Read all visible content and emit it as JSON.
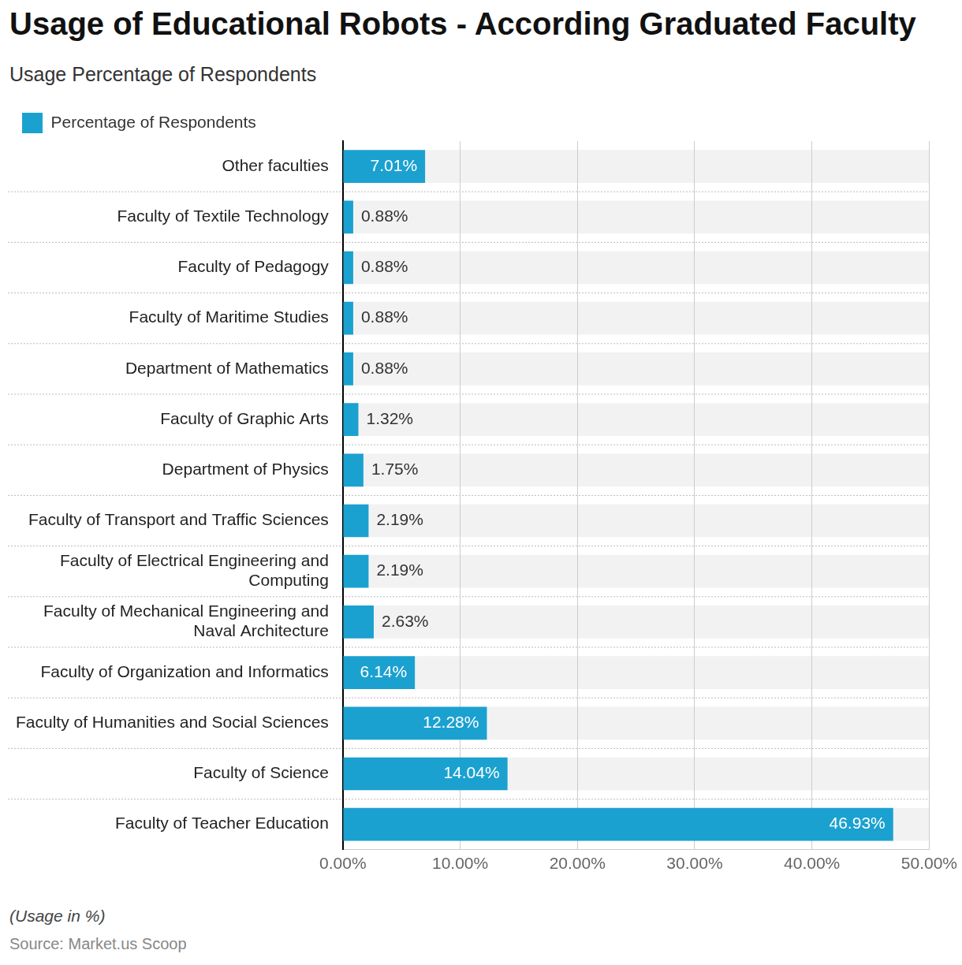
{
  "chart_data": {
    "type": "bar",
    "orientation": "horizontal",
    "title": "Usage of Educational Robots - According Graduated Faculty",
    "subtitle": "Usage Percentage of Respondents",
    "footnote": "(Usage in %)",
    "source": "Source: Market.us Scoop",
    "categories": [
      "Other faculties",
      "Faculty of Textile Technology",
      "Faculty of Pedagogy",
      "Faculty of Maritime Studies",
      "Department of Mathematics",
      "Faculty of Graphic Arts",
      "Department of Physics",
      "Faculty of Transport and Traffic Sciences",
      "Faculty of Electrical Engineering and Computing",
      "Faculty of Mechanical Engineering and Naval Architecture",
      "Faculty of Organization and Informatics",
      "Faculty of Humanities and Social Sciences",
      "Faculty of Science",
      "Faculty of Teacher Education"
    ],
    "series": [
      {
        "name": "Percentage of Respondents",
        "color": "#1ba1d0",
        "values": [
          7.01,
          0.88,
          0.88,
          0.88,
          0.88,
          1.32,
          1.75,
          2.19,
          2.19,
          2.63,
          6.14,
          12.28,
          14.04,
          46.93
        ],
        "value_labels": [
          "7.01%",
          "0.88%",
          "0.88%",
          "0.88%",
          "0.88%",
          "1.32%",
          "1.75%",
          "2.19%",
          "2.19%",
          "2.63%",
          "6.14%",
          "12.28%",
          "14.04%",
          "46.93%"
        ]
      }
    ],
    "xlim": [
      0,
      50
    ],
    "xticks": [
      {
        "value": 0,
        "label": "0.00%"
      },
      {
        "value": 10,
        "label": "10.00%"
      },
      {
        "value": 20,
        "label": "20.00%"
      },
      {
        "value": 30,
        "label": "30.00%"
      },
      {
        "value": 40,
        "label": "40.00%"
      },
      {
        "value": 50,
        "label": "50.00%"
      }
    ],
    "grid": true,
    "legend": "top-left",
    "data_labels": true
  }
}
